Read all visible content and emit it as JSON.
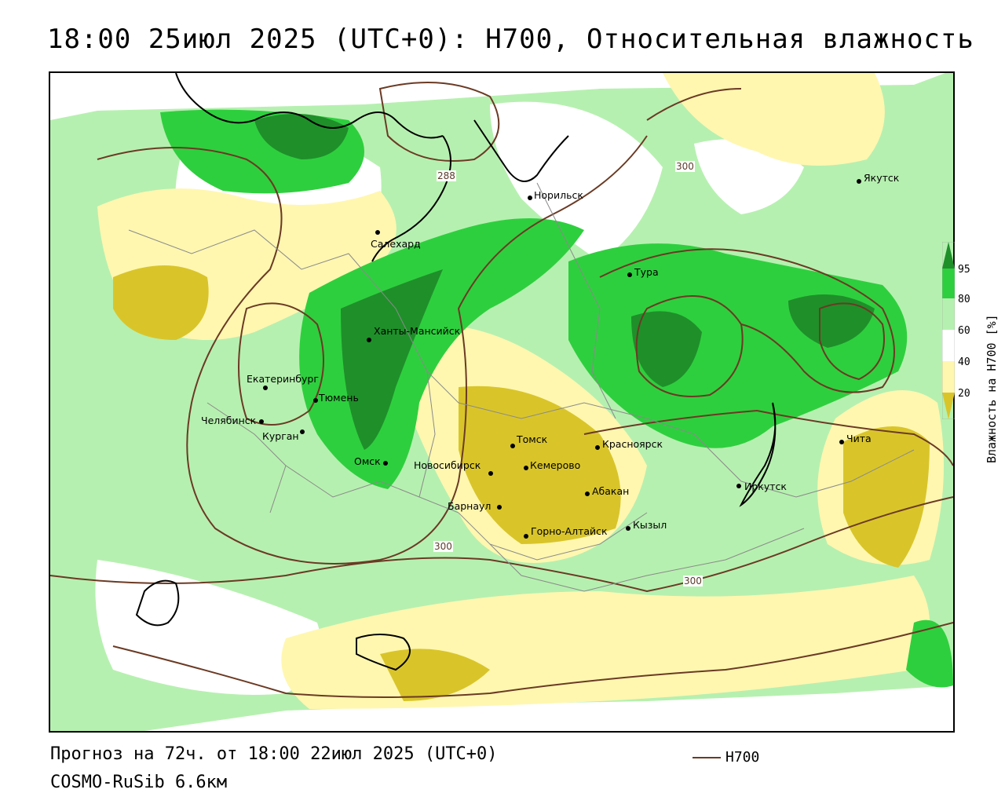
{
  "title": "18:00 25июл 2025 (UTC+0): H700, Относительная влажность",
  "forecast": "Прогноз на 72ч. от 18:00 22июл 2025 (UTC+0)",
  "model": "COSMO-RuSib 6.6км",
  "legend": {
    "line_label": "H700",
    "line_color": "#6b3a24"
  },
  "colorbar": {
    "title": "Влажность на H700 [%]",
    "ticks": [
      "95",
      "80",
      "60",
      "40",
      "20"
    ],
    "colors": {
      "95_plus": "#1f8f2a",
      "80_95": "#2ecf3e",
      "60_80": "#b6f0b0",
      "40_60": "#ffffff",
      "20_40": "#fff7b0",
      "below_20": "#d9c52a"
    }
  },
  "contour_labels": [
    "288",
    "300",
    "300",
    "300"
  ],
  "cities": [
    {
      "name": "Якутск"
    },
    {
      "name": "Норильск"
    },
    {
      "name": "Салехард"
    },
    {
      "name": "Тура"
    },
    {
      "name": "Ханты-Мансийск"
    },
    {
      "name": "Екатеринбург"
    },
    {
      "name": "Тюмень"
    },
    {
      "name": "Челябинск"
    },
    {
      "name": "Курган"
    },
    {
      "name": "Омск"
    },
    {
      "name": "Новосибирск"
    },
    {
      "name": "Томск"
    },
    {
      "name": "Кемерово"
    },
    {
      "name": "Красноярск"
    },
    {
      "name": "Абакан"
    },
    {
      "name": "Барнаул"
    },
    {
      "name": "Горно-Алтайск"
    },
    {
      "name": "Кызыл"
    },
    {
      "name": "Иркутск"
    },
    {
      "name": "Чита"
    }
  ]
}
